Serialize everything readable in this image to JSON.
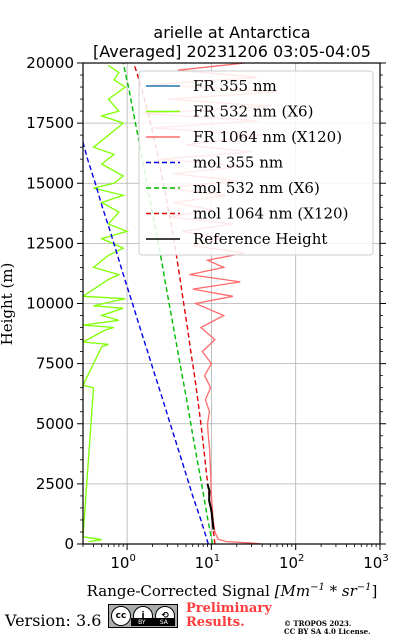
{
  "chart_data": {
    "type": "line",
    "title": "arielle at Antarctica",
    "subtitle": "[Averaged] 20231206 03:05-04:05",
    "xlabel_prefix": "Range-Corrected Signal ",
    "xlabel_math": "[Mm",
    "xlabel_sup1": "−1",
    "xlabel_mid": " * sr",
    "xlabel_sup2": "−1",
    "xlabel_end": "]",
    "ylabel": "Height (m)",
    "xscale": "log",
    "xlim": [
      0.3,
      1000
    ],
    "ylim": [
      0,
      20000
    ],
    "grid": true,
    "legend_position": "top-right",
    "x_ticks": [
      {
        "value": 1,
        "base": "10",
        "exp": "0"
      },
      {
        "value": 10,
        "base": "10",
        "exp": "1"
      },
      {
        "value": 100,
        "base": "10",
        "exp": "2"
      },
      {
        "value": 1000,
        "base": "10",
        "exp": "3"
      }
    ],
    "y_ticks": [
      0,
      2500,
      5000,
      7500,
      10000,
      12500,
      15000,
      17500,
      20000
    ],
    "series": [
      {
        "name": "FR 355 nm",
        "color": "#1f77b4",
        "style": "solid",
        "points": []
      },
      {
        "name": "FR 532 nm (X6)",
        "color": "#7fff00",
        "style": "solid",
        "points": [
          [
            0.35,
            100
          ],
          [
            0.5,
            180
          ],
          [
            0.3,
            300
          ],
          [
            0.4,
            6500
          ],
          [
            0.3,
            6600
          ],
          [
            0.5,
            8200
          ],
          [
            0.6,
            8300
          ],
          [
            0.3,
            8400
          ],
          [
            0.55,
            8900
          ],
          [
            0.7,
            9000
          ],
          [
            0.3,
            9100
          ],
          [
            0.8,
            9300
          ],
          [
            0.5,
            9500
          ],
          [
            0.9,
            9800
          ],
          [
            0.4,
            9900
          ],
          [
            0.7,
            10100
          ],
          [
            0.95,
            10200
          ],
          [
            0.3,
            10300
          ],
          [
            0.6,
            11000
          ],
          [
            0.8,
            11200
          ],
          [
            0.4,
            11500
          ],
          [
            0.6,
            12000
          ],
          [
            0.9,
            12300
          ],
          [
            0.5,
            12700
          ],
          [
            1.0,
            13000
          ],
          [
            0.6,
            13300
          ],
          [
            0.8,
            13800
          ],
          [
            0.5,
            14200
          ],
          [
            0.9,
            14500
          ],
          [
            0.4,
            14800
          ],
          [
            0.7,
            15000
          ],
          [
            0.9,
            15300
          ],
          [
            0.5,
            15800
          ],
          [
            0.7,
            16200
          ],
          [
            0.4,
            16500
          ],
          [
            0.6,
            17000
          ],
          [
            0.9,
            17500
          ],
          [
            0.5,
            17800
          ],
          [
            0.8,
            18000
          ],
          [
            0.6,
            18500
          ],
          [
            0.95,
            19000
          ],
          [
            0.7,
            19300
          ],
          [
            0.8,
            19600
          ],
          [
            0.6,
            19900
          ]
        ]
      },
      {
        "name": "FR 1064 nm (X120)",
        "color": "#ff6b6b",
        "style": "solid",
        "points": [
          [
            40,
            0
          ],
          [
            30,
            40
          ],
          [
            15,
            100
          ],
          [
            12,
            200
          ],
          [
            11,
            500
          ],
          [
            10.5,
            1000
          ],
          [
            10,
            2000
          ],
          [
            9.8,
            3000
          ],
          [
            9.5,
            4000
          ],
          [
            9.2,
            4500
          ],
          [
            9.0,
            5000
          ],
          [
            9.5,
            5500
          ],
          [
            8.5,
            6000
          ],
          [
            9.8,
            6500
          ],
          [
            8.3,
            7000
          ],
          [
            10,
            7500
          ],
          [
            7.8,
            8000
          ],
          [
            11,
            8500
          ],
          [
            7.5,
            9000
          ],
          [
            14,
            9500
          ],
          [
            6.5,
            10000
          ],
          [
            18,
            10300
          ],
          [
            6,
            10600
          ],
          [
            22,
            10900
          ],
          [
            5.5,
            11200
          ],
          [
            14,
            11500
          ],
          [
            9,
            11800
          ],
          [
            25,
            12100
          ],
          [
            6,
            12400
          ],
          [
            13,
            12700
          ],
          [
            4.5,
            13000
          ],
          [
            18,
            13300
          ],
          [
            3.2,
            13600
          ],
          [
            10,
            13900
          ],
          [
            3.5,
            14200
          ],
          [
            15,
            14500
          ],
          [
            2.8,
            14800
          ],
          [
            20,
            15100
          ],
          [
            3.5,
            15400
          ],
          [
            25,
            15700
          ],
          [
            2.5,
            16000
          ],
          [
            30,
            16300
          ],
          [
            5,
            16600
          ],
          [
            40,
            17000
          ],
          [
            2,
            17300
          ],
          [
            35,
            17600
          ],
          [
            1.5,
            17900
          ],
          [
            50,
            18200
          ],
          [
            3,
            18500
          ],
          [
            60,
            18800
          ],
          [
            2,
            19100
          ],
          [
            35,
            19400
          ],
          [
            4,
            19700
          ],
          [
            25,
            20000
          ]
        ]
      },
      {
        "name": "mol 355 nm",
        "color": "#0000ee",
        "style": "dashed",
        "points": [
          [
            9.2,
            0
          ],
          [
            7.5,
            1000
          ],
          [
            6.0,
            2000
          ],
          [
            4.9,
            3000
          ],
          [
            4.0,
            4000
          ],
          [
            3.25,
            5000
          ],
          [
            2.65,
            6000
          ],
          [
            2.15,
            7000
          ],
          [
            1.75,
            8000
          ],
          [
            1.42,
            9000
          ],
          [
            1.16,
            10000
          ],
          [
            0.94,
            11000
          ],
          [
            0.77,
            12000
          ],
          [
            0.63,
            13000
          ],
          [
            0.51,
            14000
          ],
          [
            0.42,
            15000
          ],
          [
            0.34,
            16000
          ],
          [
            0.3,
            16700
          ]
        ]
      },
      {
        "name": "mol 532 nm (X6)",
        "color": "#00bb00",
        "style": "dashed",
        "points": [
          [
            10.3,
            0
          ],
          [
            9.1,
            1000
          ],
          [
            8.1,
            2000
          ],
          [
            7.2,
            3000
          ],
          [
            6.4,
            4000
          ],
          [
            5.7,
            5000
          ],
          [
            5.1,
            6000
          ],
          [
            4.5,
            7000
          ],
          [
            4.0,
            8000
          ],
          [
            3.55,
            9000
          ],
          [
            3.15,
            10000
          ],
          [
            2.8,
            11000
          ],
          [
            2.5,
            12000
          ],
          [
            2.2,
            13000
          ],
          [
            1.95,
            14000
          ],
          [
            1.72,
            15000
          ],
          [
            1.52,
            16000
          ],
          [
            1.34,
            17000
          ],
          [
            1.18,
            18000
          ],
          [
            1.04,
            19000
          ],
          [
            0.9,
            20000
          ]
        ]
      },
      {
        "name": "mol 1064 nm (X120)",
        "color": "#dd0000",
        "style": "dashed",
        "points": [
          [
            11.0,
            0
          ],
          [
            10.2,
            1000
          ],
          [
            9.4,
            2000
          ],
          [
            8.7,
            3000
          ],
          [
            8.1,
            4000
          ],
          [
            7.5,
            5000
          ],
          [
            6.9,
            6000
          ],
          [
            6.3,
            7000
          ],
          [
            5.7,
            8000
          ],
          [
            5.2,
            9000
          ],
          [
            4.7,
            10000
          ],
          [
            4.25,
            11000
          ],
          [
            3.85,
            12000
          ],
          [
            3.45,
            13000
          ],
          [
            3.05,
            14000
          ],
          [
            2.7,
            15000
          ],
          [
            2.35,
            16000
          ],
          [
            2.05,
            17000
          ],
          [
            1.75,
            18000
          ],
          [
            1.47,
            19000
          ],
          [
            1.2,
            20000
          ]
        ]
      },
      {
        "name": "Reference Height",
        "color": "#000000",
        "style": "solid",
        "points": [
          [
            9.0,
            2500
          ],
          [
            9.5,
            2200
          ],
          [
            9.4,
            1800
          ],
          [
            10.0,
            1400
          ],
          [
            10.3,
            1000
          ],
          [
            10.6,
            600
          ]
        ]
      }
    ]
  },
  "footer": {
    "version": "Version: 3.6",
    "cc_icon_text": "cc",
    "by_icon_text": "i",
    "sa_icon_text": "⟲",
    "cc_bar_by": "BY",
    "cc_bar_sa": "SA",
    "preliminary_line1": "Preliminary",
    "preliminary_line2": "Results.",
    "copyright_line1": "© TROPOS 2023.",
    "copyright_line2": "CC BY SA 4.0 License."
  }
}
